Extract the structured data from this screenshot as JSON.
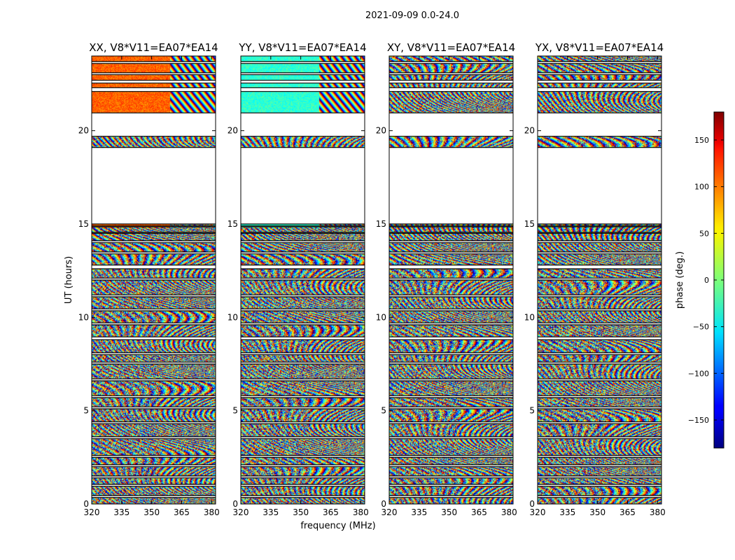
{
  "chart_data": {
    "type": "heatmap",
    "suptitle": "2021-09-09 0.0-24.0",
    "ylabel": "UT (hours)",
    "xlabel": "frequency (MHz)",
    "xlim": [
      320,
      382
    ],
    "ylim": [
      0,
      24
    ],
    "xticks": [
      320,
      335,
      350,
      365,
      380
    ],
    "yticks": [
      0,
      5,
      10,
      15,
      20
    ],
    "panels": [
      {
        "title": "XX, V8*V11=EA07*EA14",
        "pol": "XX"
      },
      {
        "title": "YY, V8*V11=EA07*EA14",
        "pol": "YY"
      },
      {
        "title": "XY, V8*V11=EA07*EA14",
        "pol": "XY"
      },
      {
        "title": "YX, V8*V11=EA07*EA14",
        "pol": "YX"
      }
    ],
    "observed_bands_hours": [
      [
        0.0,
        0.35
      ],
      [
        0.45,
        0.95
      ],
      [
        1.05,
        1.4
      ],
      [
        1.5,
        2.0
      ],
      [
        2.1,
        2.5
      ],
      [
        2.6,
        3.5
      ],
      [
        3.6,
        4.3
      ],
      [
        4.4,
        5.1
      ],
      [
        5.2,
        5.7
      ],
      [
        5.8,
        6.6
      ],
      [
        6.7,
        7.5
      ],
      [
        7.6,
        8.0
      ],
      [
        8.1,
        8.8
      ],
      [
        8.95,
        9.6
      ],
      [
        9.7,
        10.35
      ],
      [
        10.45,
        11.1
      ],
      [
        11.2,
        12.0
      ],
      [
        12.1,
        12.6
      ],
      [
        12.8,
        13.4
      ],
      [
        13.5,
        14.0
      ],
      [
        14.1,
        14.5
      ],
      [
        14.55,
        14.85
      ],
      [
        14.9,
        15.0
      ],
      [
        19.1,
        19.7
      ],
      [
        20.95,
        22.1
      ],
      [
        22.3,
        22.55
      ],
      [
        22.7,
        23.0
      ],
      [
        23.1,
        23.6
      ],
      [
        23.7,
        24.0
      ]
    ],
    "colorbar": {
      "label": "phase (deg.)",
      "range": [
        -180,
        180
      ],
      "ticks": [
        150,
        100,
        50,
        0,
        -50,
        -100,
        -150
      ],
      "tick_labels": [
        "150",
        "100",
        "50",
        "0",
        "−50",
        "−100",
        "−150"
      ]
    }
  }
}
